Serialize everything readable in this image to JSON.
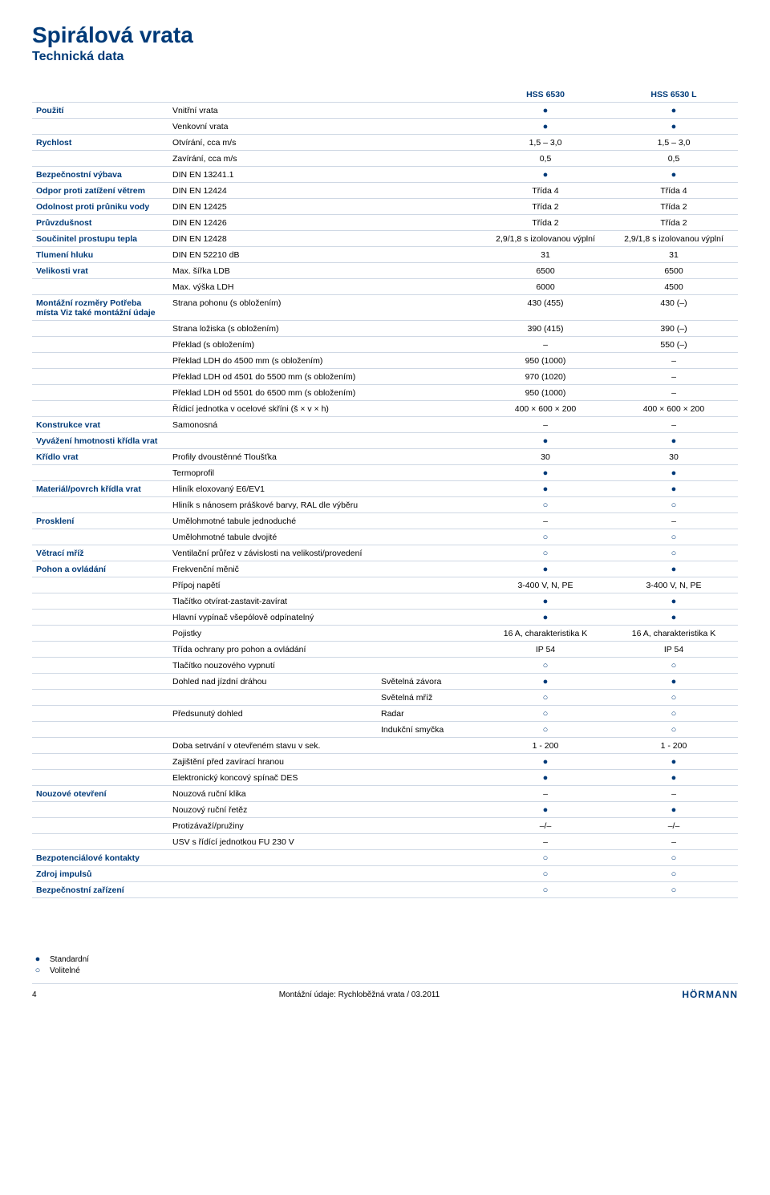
{
  "title": "Spirálová vrata",
  "subtitle": "Technická data",
  "header": {
    "col1": "HSS 6530",
    "col2": "HSS 6530 L"
  },
  "legend": {
    "standard": "Standardní",
    "optional": "Volitelné"
  },
  "footer": {
    "page": "4",
    "center": "Montážní údaje: Rychloběžná vrata / 03.2011",
    "brand": "HÖRMANN"
  },
  "colors": {
    "heading": "#003a78",
    "rule": "#cfd8e4",
    "bg": "#ffffff"
  },
  "rows": [
    {
      "group": "Použití",
      "sub": "Vnitřní vrata",
      "v": [
        "dot",
        "dot"
      ]
    },
    {
      "group": "",
      "sub": "Venkovní vrata",
      "v": [
        "dot",
        "dot"
      ]
    },
    {
      "group": "Rychlost",
      "sub": "Otvírání, cca m/s",
      "v": [
        "1,5 – 3,0",
        "1,5 – 3,0"
      ]
    },
    {
      "group": "",
      "sub": "Zavírání, cca m/s",
      "v": [
        "0,5",
        "0,5"
      ]
    },
    {
      "group": "Bezpečnostní výbava",
      "sub": "DIN EN 13241.1",
      "v": [
        "dot",
        "dot"
      ]
    },
    {
      "group": "Odpor proti zatížení větrem",
      "sub": "DIN EN 12424",
      "v": [
        "Třída 4",
        "Třída 4"
      ]
    },
    {
      "group": "Odolnost proti průniku vody",
      "sub": "DIN EN 12425",
      "v": [
        "Třída 2",
        "Třída 2"
      ]
    },
    {
      "group": "Průvzdušnost",
      "sub": "DIN EN 12426",
      "v": [
        "Třída 2",
        "Třída 2"
      ]
    },
    {
      "group": "Součinitel prostupu tepla",
      "sub": "DIN EN 12428",
      "v": [
        "2,9/1,8 s izolovanou výplní",
        "2,9/1,8 s izolovanou výplní"
      ]
    },
    {
      "group": "Tlumení hluku",
      "sub": "DIN EN 52210 dB",
      "v": [
        "31",
        "31"
      ]
    },
    {
      "group": "Velikosti vrat",
      "sub": "Max. šířka LDB",
      "v": [
        "6500",
        "6500"
      ]
    },
    {
      "group": "",
      "sub": "Max. výška LDH",
      "v": [
        "6000",
        "4500"
      ]
    },
    {
      "group": "Montážní rozměry Potřeba místa Viz také montážní údaje",
      "sub": "Strana pohonu (s obložením)",
      "v": [
        "430 (455)",
        "430 (–)"
      ]
    },
    {
      "group": "",
      "sub": "Strana ložiska (s obložením)",
      "v": [
        "390 (415)",
        "390 (–)"
      ]
    },
    {
      "group": "",
      "sub": "Překlad (s obložením)",
      "v": [
        "–",
        "550 (–)"
      ]
    },
    {
      "group": "",
      "sub": "Překlad LDH do 4500 mm (s obložením)",
      "v": [
        "950 (1000)",
        "–"
      ]
    },
    {
      "group": "",
      "sub": "Překlad LDH od 4501 do 5500 mm (s obložením)",
      "v": [
        "970 (1020)",
        "–"
      ]
    },
    {
      "group": "",
      "sub": "Překlad LDH od 5501 do 6500 mm (s obložením)",
      "v": [
        "950 (1000)",
        "–"
      ]
    },
    {
      "group": "",
      "sub": "Řídicí jednotka v ocelové skříni (š × v × h)",
      "v": [
        "400 × 600 × 200",
        "400 × 600 × 200"
      ]
    },
    {
      "group": "Konstrukce vrat",
      "sub": "Samonosná",
      "v": [
        "–",
        "–"
      ]
    },
    {
      "group": "Vyvážení hmotnosti křídla vrat",
      "sub": "",
      "v": [
        "dot",
        "dot"
      ]
    },
    {
      "group": "Křídlo vrat",
      "sub": "Profily dvoustěnné Tloušťka",
      "v": [
        "30",
        "30"
      ]
    },
    {
      "group": "",
      "sub": "Termoprofil",
      "v": [
        "dot",
        "dot"
      ]
    },
    {
      "group": "Materiál/povrch křídla vrat",
      "sub": "Hliník eloxovaný E6/EV1",
      "v": [
        "dot",
        "dot"
      ]
    },
    {
      "group": "",
      "sub": "Hliník s nánosem práškové barvy, RAL dle výběru",
      "v": [
        "ring",
        "ring"
      ]
    },
    {
      "group": "Prosklení",
      "sub": "Umělohmotné tabule jednoduché",
      "v": [
        "–",
        "–"
      ]
    },
    {
      "group": "",
      "sub": "Umělohmotné tabule dvojité",
      "v": [
        "ring",
        "ring"
      ]
    },
    {
      "group": "Větrací mříž",
      "sub": "Ventilační průřez v závislosti na velikosti/provedení",
      "v": [
        "ring",
        "ring"
      ]
    },
    {
      "group": "Pohon a ovládání",
      "sub": "Frekvenční měnič",
      "v": [
        "dot",
        "dot"
      ]
    },
    {
      "group": "",
      "sub": "Přípoj napětí",
      "v": [
        "3-400 V, N, PE",
        "3-400 V, N, PE"
      ]
    },
    {
      "group": "",
      "sub": "Tlačítko otvírat-zastavit-zavírat",
      "v": [
        "dot",
        "dot"
      ]
    },
    {
      "group": "",
      "sub": "Hlavní vypínač všepólově odpínatelný",
      "v": [
        "dot",
        "dot"
      ]
    },
    {
      "group": "",
      "sub": "Pojistky",
      "v": [
        "16 A, charakteristika K",
        "16 A, charakteristika K"
      ]
    },
    {
      "group": "",
      "sub": "Třída ochrany pro pohon a ovládání",
      "v": [
        "IP 54",
        "IP 54"
      ]
    },
    {
      "group": "",
      "sub": "Tlačítko nouzového vypnutí",
      "v": [
        "ring",
        "ring"
      ]
    },
    {
      "group": "",
      "sub": "Dohled nad jízdní dráhou",
      "sub2": "Světelná závora",
      "v": [
        "dot",
        "dot"
      ]
    },
    {
      "group": "",
      "sub": "",
      "sub2": "Světelná mříž",
      "v": [
        "ring",
        "ring"
      ]
    },
    {
      "group": "",
      "sub": "Předsunutý dohled",
      "sub2": "Radar",
      "v": [
        "ring",
        "ring"
      ]
    },
    {
      "group": "",
      "sub": "",
      "sub2": "Indukční smyčka",
      "v": [
        "ring",
        "ring"
      ]
    },
    {
      "group": "",
      "sub": "Doba setrvání v otevřeném stavu v sek.",
      "v": [
        "1 - 200",
        "1 - 200"
      ]
    },
    {
      "group": "",
      "sub": "Zajištění před zavírací hranou",
      "v": [
        "dot",
        "dot"
      ]
    },
    {
      "group": "",
      "sub": "Elektronický koncový spínač DES",
      "v": [
        "dot",
        "dot"
      ]
    },
    {
      "group": "Nouzové otevření",
      "sub": "Nouzová ruční klika",
      "v": [
        "–",
        "–"
      ]
    },
    {
      "group": "",
      "sub": "Nouzový ruční řetěz",
      "v": [
        "dot",
        "dot"
      ]
    },
    {
      "group": "",
      "sub": "Protizávaží/pružiny",
      "v": [
        "–/–",
        "–/–"
      ]
    },
    {
      "group": "",
      "sub": "USV s řídící jednotkou FU 230 V",
      "v": [
        "–",
        "–"
      ]
    },
    {
      "group": "Bezpotenciálové kontakty",
      "sub": "",
      "v": [
        "ring",
        "ring"
      ]
    },
    {
      "group": "Zdroj impulsů",
      "sub": "",
      "v": [
        "ring",
        "ring"
      ]
    },
    {
      "group": "Bezpečnostní zařízení",
      "sub": "",
      "v": [
        "ring",
        "ring"
      ]
    }
  ]
}
